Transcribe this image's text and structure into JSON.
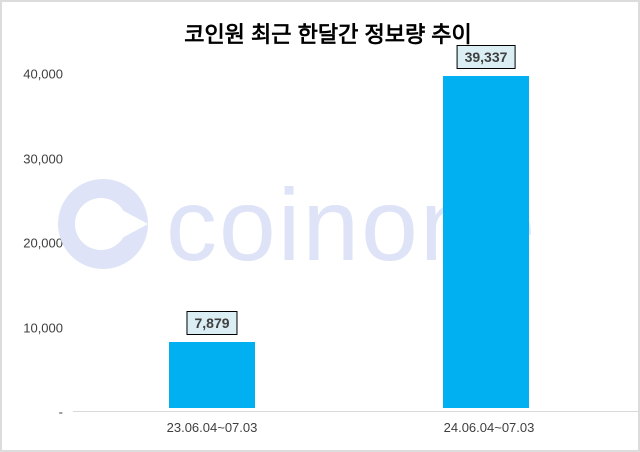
{
  "chart_data": {
    "type": "bar",
    "title": "코인원 최근 한달간 정보량 추이",
    "categories": [
      "23.06.04~07.03",
      "24.06.04~07.03"
    ],
    "values": [
      7879,
      39337
    ],
    "value_labels": [
      "7,879",
      "39,337"
    ],
    "y_ticks": [
      "40,000",
      "30,000",
      "20,000",
      "10,000",
      "-"
    ],
    "ylim": [
      0,
      40000
    ],
    "grid": false,
    "legend": "none",
    "bar_color": "#00B0F0",
    "label_box_bg": "#DAEEF3",
    "axis_line_color": "#D9D9D9"
  },
  "watermark": {
    "text": "coinone",
    "color": "#DEE3F7"
  }
}
